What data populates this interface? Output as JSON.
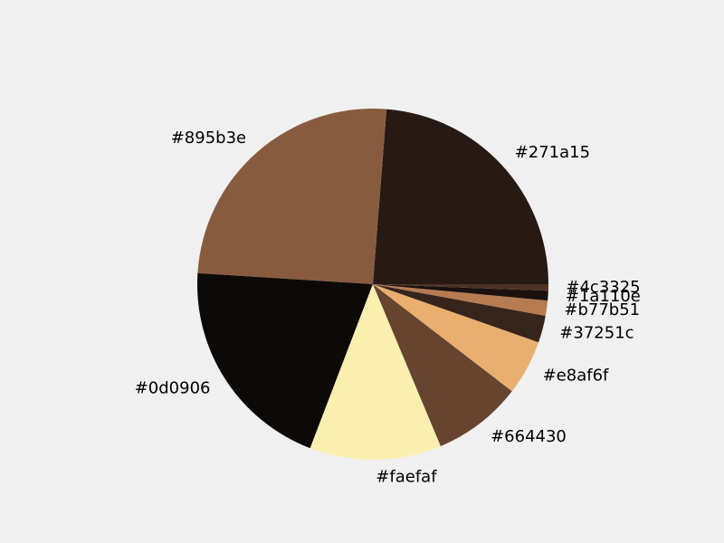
{
  "chart_data": {
    "type": "pie",
    "title": "",
    "start_angle_deg": 0,
    "direction": "counterclockwise",
    "background": "#f0f0f0",
    "slices": [
      {
        "label": "#271a15",
        "color": "#271a15",
        "value": 23.9
      },
      {
        "label": "#895b3e",
        "color": "#895b3e",
        "value": 25.4
      },
      {
        "label": "#0d0906",
        "color": "#0d0906",
        "value": 20.3
      },
      {
        "label": "#faefaf",
        "color": "#faefaf",
        "value": 12.2
      },
      {
        "label": "#664430",
        "color": "#664430",
        "value": 8.3
      },
      {
        "label": "#e8af6f",
        "color": "#e8af6f",
        "value": 5.1
      },
      {
        "label": "#37251c",
        "color": "#37251c",
        "value": 2.5
      },
      {
        "label": "#b77b51",
        "color": "#b77b51",
        "value": 1.4
      },
      {
        "label": "#1a110e",
        "color": "#1a110e",
        "value": 0.9
      },
      {
        "label": "#4c3325",
        "color": "#4c3325",
        "value": 0.6
      }
    ]
  }
}
